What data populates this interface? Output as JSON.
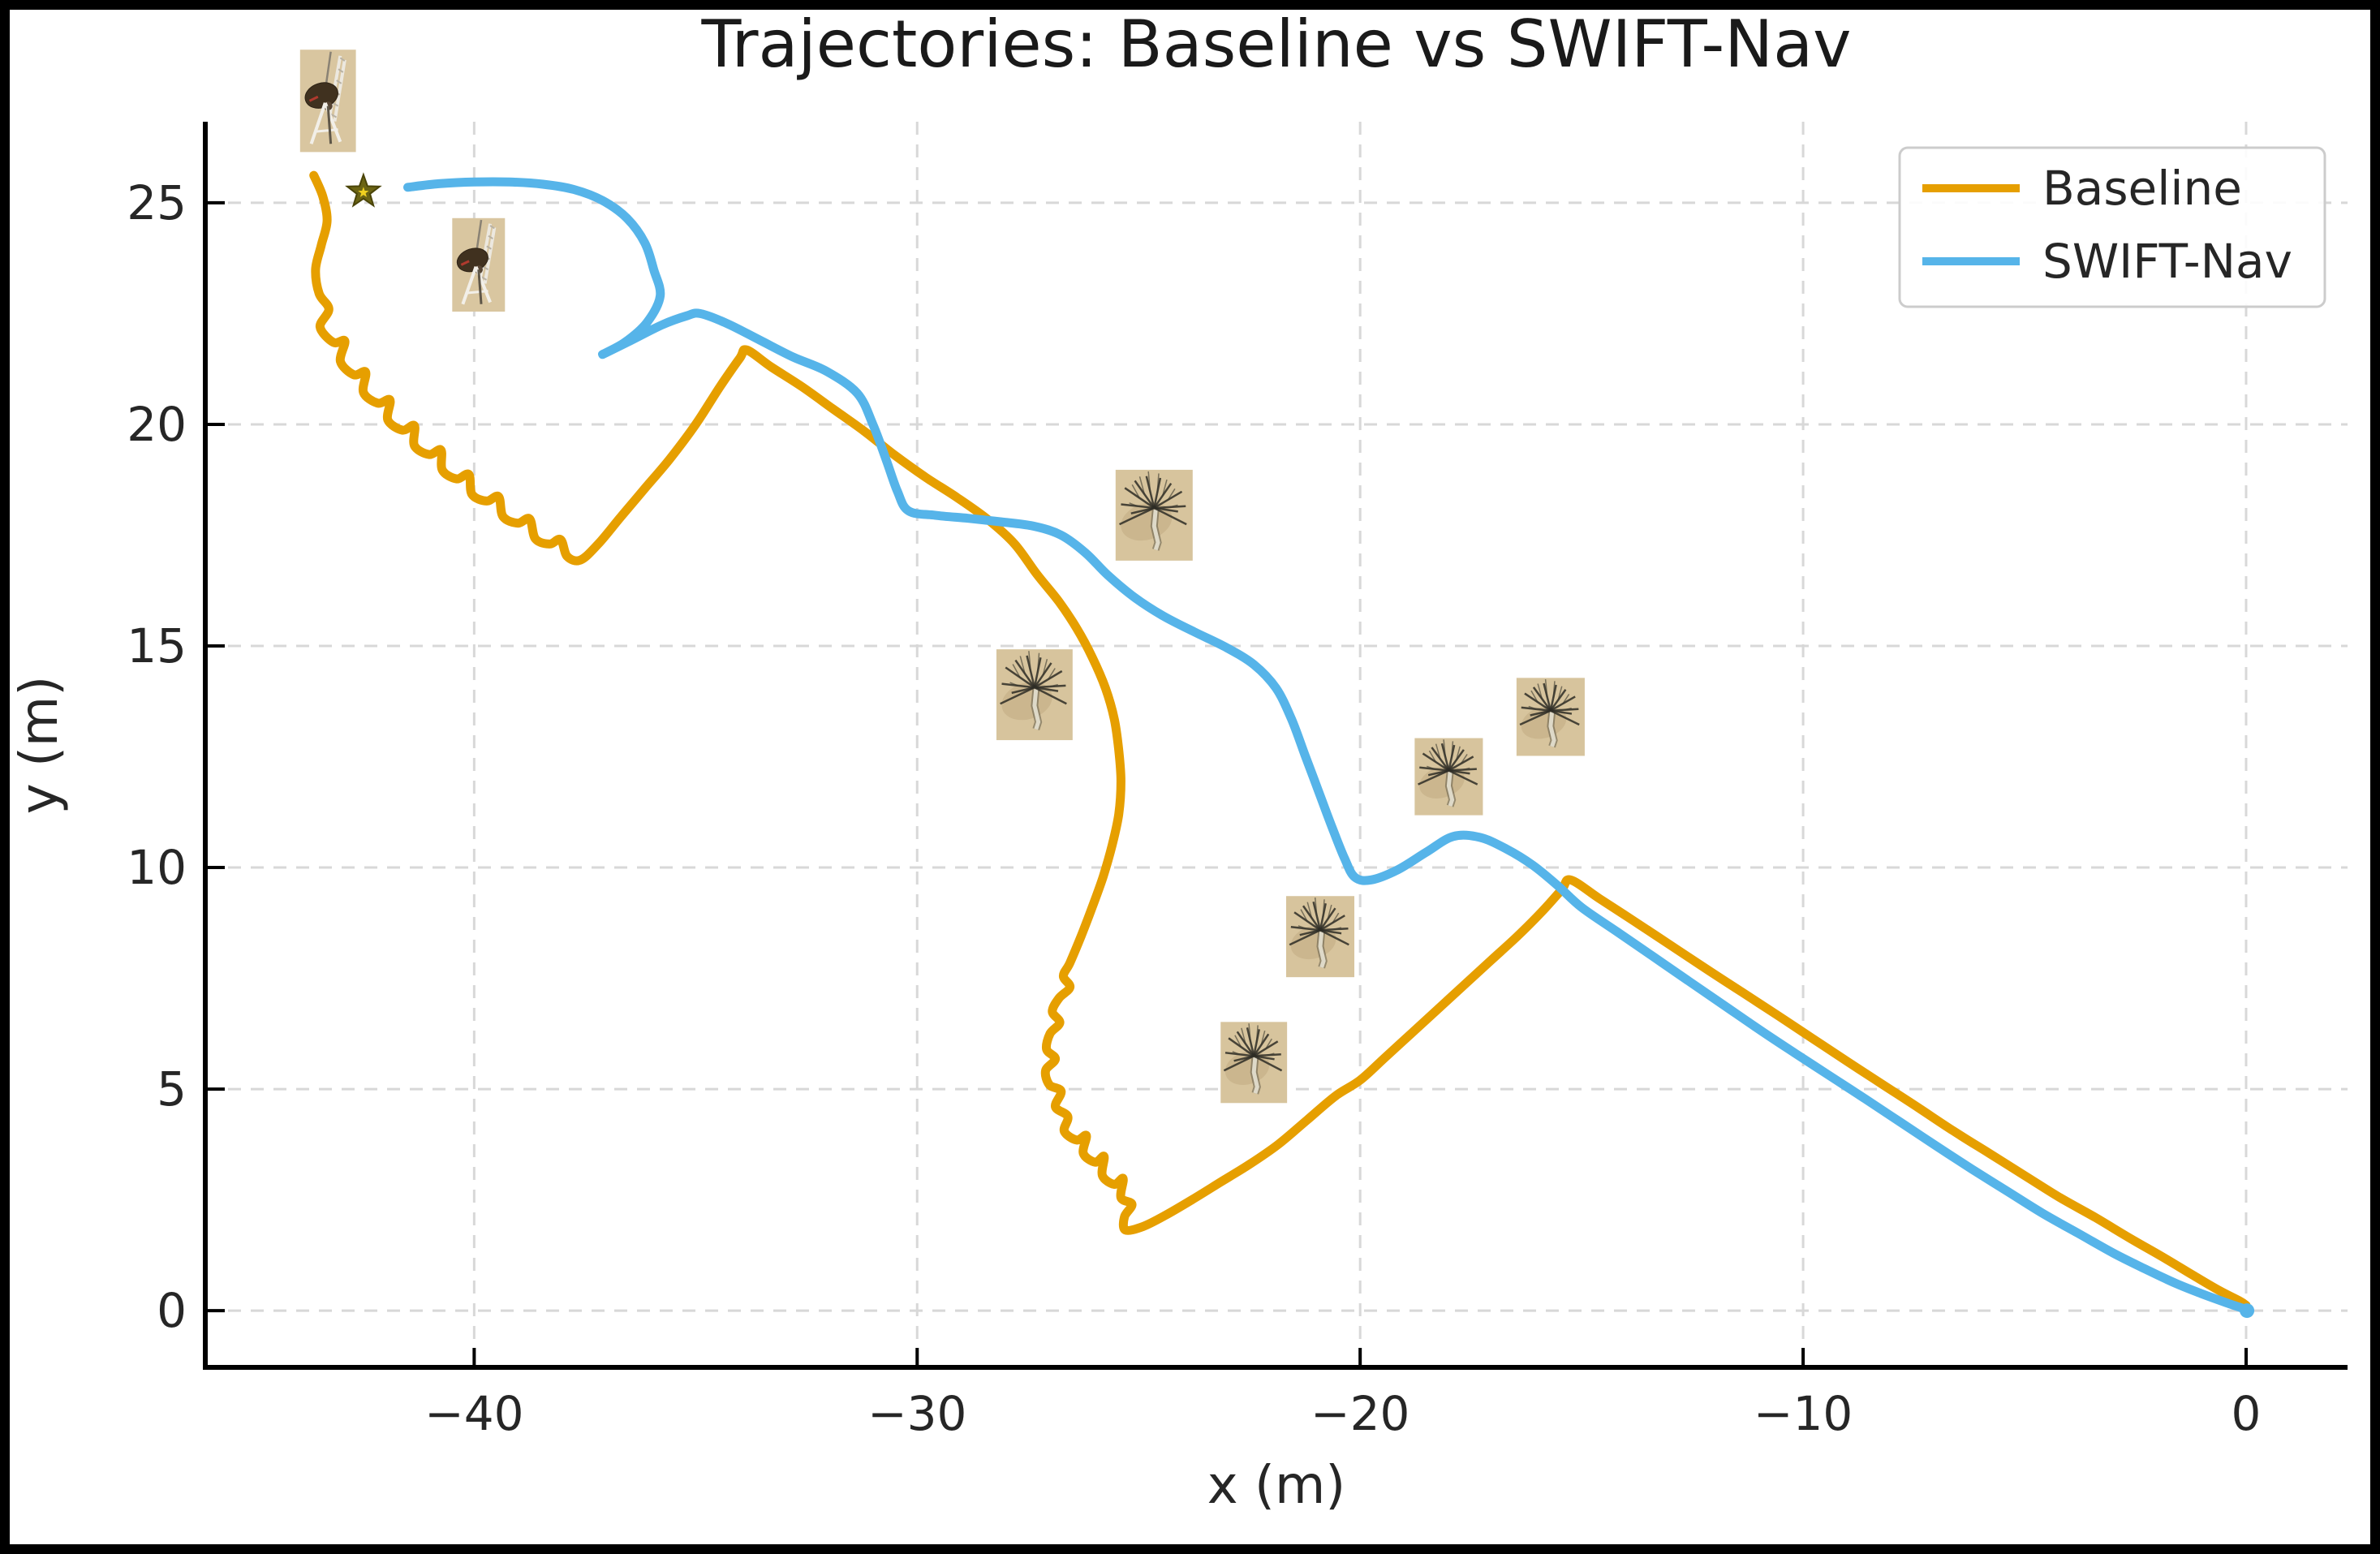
{
  "figure": {
    "title": "Trajectories: Baseline vs SWIFT-Nav",
    "xlabel": "x (m)",
    "ylabel": "y (m)",
    "background_color": "#ffffff",
    "frame_color": "#000000",
    "grid_color": "#d8d8d8",
    "text_color": "#262626"
  },
  "legend": {
    "position": "upper right",
    "entries": [
      {
        "label": "Baseline",
        "color": "#E69F00"
      },
      {
        "label": "SWIFT-Nav",
        "color": "#56B4E9"
      }
    ]
  },
  "chart_data": {
    "type": "line",
    "title": "Trajectories: Baseline vs SWIFT-Nav",
    "xlabel": "x (m)",
    "ylabel": "y (m)",
    "xlim": [
      -46.07,
      2.29
    ],
    "ylim": [
      -1.28,
      26.83
    ],
    "xticks": [
      -40,
      -30,
      -20,
      -10,
      0
    ],
    "yticks": [
      0,
      5,
      10,
      15,
      20,
      25
    ],
    "xtick_labels": [
      "−40",
      "−30",
      "−20",
      "−10",
      "0"
    ],
    "ytick_labels": [
      "0",
      "5",
      "10",
      "15",
      "20",
      "25"
    ],
    "grid": true,
    "legend_position": "upper right",
    "series": [
      {
        "name": "Baseline",
        "color": "#E69F00",
        "linewidth": 11,
        "end_dot": false,
        "points": [
          [
            -43.62,
            25.62
          ],
          [
            -43.42,
            25.15
          ],
          [
            -43.32,
            24.6
          ],
          [
            -43.45,
            24.05
          ],
          [
            -43.58,
            23.5
          ],
          [
            -43.5,
            22.95
          ],
          [
            -43.28,
            22.6
          ],
          [
            -43.48,
            22.2
          ],
          [
            -43.18,
            21.85
          ],
          [
            -42.92,
            21.88
          ],
          [
            -43.02,
            21.42
          ],
          [
            -42.72,
            21.12
          ],
          [
            -42.45,
            21.18
          ],
          [
            -42.5,
            20.72
          ],
          [
            -42.18,
            20.48
          ],
          [
            -41.9,
            20.55
          ],
          [
            -41.95,
            20.1
          ],
          [
            -41.62,
            19.87
          ],
          [
            -41.35,
            19.97
          ],
          [
            -41.35,
            19.52
          ],
          [
            -41.02,
            19.32
          ],
          [
            -40.75,
            19.42
          ],
          [
            -40.72,
            18.97
          ],
          [
            -40.4,
            18.77
          ],
          [
            -40.12,
            18.87
          ],
          [
            -40.05,
            18.42
          ],
          [
            -39.72,
            18.27
          ],
          [
            -39.45,
            18.37
          ],
          [
            -39.35,
            17.92
          ],
          [
            -39.02,
            17.77
          ],
          [
            -38.75,
            17.87
          ],
          [
            -38.62,
            17.42
          ],
          [
            -38.3,
            17.3
          ],
          [
            -38.05,
            17.4
          ],
          [
            -37.9,
            17.02
          ],
          [
            -37.6,
            16.94
          ],
          [
            -37.2,
            17.3
          ],
          [
            -36.7,
            17.9
          ],
          [
            -36.15,
            18.55
          ],
          [
            -35.6,
            19.2
          ],
          [
            -35.0,
            20.0
          ],
          [
            -34.45,
            20.85
          ],
          [
            -34.0,
            21.5
          ],
          [
            -33.85,
            21.68
          ],
          [
            -33.3,
            21.3
          ],
          [
            -32.6,
            20.85
          ],
          [
            -31.9,
            20.35
          ],
          [
            -31.2,
            19.85
          ],
          [
            -30.5,
            19.3
          ],
          [
            -29.8,
            18.8
          ],
          [
            -29.1,
            18.35
          ],
          [
            -28.4,
            17.85
          ],
          [
            -27.8,
            17.3
          ],
          [
            -27.3,
            16.62
          ],
          [
            -26.8,
            16.0
          ],
          [
            -26.4,
            15.4
          ],
          [
            -26.05,
            14.75
          ],
          [
            -25.75,
            14.05
          ],
          [
            -25.55,
            13.35
          ],
          [
            -25.45,
            12.65
          ],
          [
            -25.4,
            11.95
          ],
          [
            -25.45,
            11.2
          ],
          [
            -25.6,
            10.5
          ],
          [
            -25.8,
            9.8
          ],
          [
            -26.05,
            9.1
          ],
          [
            -26.3,
            8.45
          ],
          [
            -26.55,
            7.85
          ],
          [
            -26.7,
            7.55
          ],
          [
            -26.55,
            7.3
          ],
          [
            -26.8,
            7.05
          ],
          [
            -26.95,
            6.75
          ],
          [
            -26.78,
            6.5
          ],
          [
            -27.0,
            6.25
          ],
          [
            -27.08,
            5.9
          ],
          [
            -26.88,
            5.68
          ],
          [
            -27.1,
            5.42
          ],
          [
            -27.02,
            5.1
          ],
          [
            -26.75,
            4.95
          ],
          [
            -26.88,
            4.6
          ],
          [
            -26.6,
            4.38
          ],
          [
            -26.68,
            4.05
          ],
          [
            -26.4,
            3.85
          ],
          [
            -26.18,
            3.95
          ],
          [
            -26.25,
            3.55
          ],
          [
            -25.98,
            3.35
          ],
          [
            -25.78,
            3.48
          ],
          [
            -25.82,
            3.05
          ],
          [
            -25.55,
            2.85
          ],
          [
            -25.35,
            2.98
          ],
          [
            -25.4,
            2.55
          ],
          [
            -25.15,
            2.4
          ],
          [
            -25.32,
            2.12
          ],
          [
            -25.3,
            1.82
          ],
          [
            -24.9,
            1.9
          ],
          [
            -24.4,
            2.15
          ],
          [
            -23.8,
            2.5
          ],
          [
            -23.15,
            2.9
          ],
          [
            -22.5,
            3.3
          ],
          [
            -21.85,
            3.75
          ],
          [
            -21.2,
            4.3
          ],
          [
            -20.55,
            4.85
          ],
          [
            -20.0,
            5.2
          ],
          [
            -19.45,
            5.7
          ],
          [
            -18.85,
            6.25
          ],
          [
            -18.25,
            6.8
          ],
          [
            -17.65,
            7.35
          ],
          [
            -17.05,
            7.9
          ],
          [
            -16.45,
            8.45
          ],
          [
            -15.9,
            9.0
          ],
          [
            -15.45,
            9.5
          ],
          [
            -15.25,
            9.72
          ],
          [
            -14.6,
            9.3
          ],
          [
            -13.8,
            8.78
          ],
          [
            -13.0,
            8.25
          ],
          [
            -12.2,
            7.72
          ],
          [
            -11.4,
            7.2
          ],
          [
            -10.6,
            6.68
          ],
          [
            -9.8,
            6.15
          ],
          [
            -9.0,
            5.62
          ],
          [
            -8.2,
            5.1
          ],
          [
            -7.4,
            4.58
          ],
          [
            -6.6,
            4.05
          ],
          [
            -5.8,
            3.55
          ],
          [
            -5.0,
            3.05
          ],
          [
            -4.2,
            2.55
          ],
          [
            -3.4,
            2.1
          ],
          [
            -2.6,
            1.62
          ],
          [
            -1.9,
            1.22
          ],
          [
            -1.2,
            0.8
          ],
          [
            -0.6,
            0.45
          ],
          [
            -0.15,
            0.22
          ],
          [
            0.0,
            0.12
          ]
        ]
      },
      {
        "name": "SWIFT-Nav",
        "color": "#56B4E9",
        "linewidth": 11,
        "end_dot": true,
        "points": [
          [
            -41.5,
            25.35
          ],
          [
            -40.8,
            25.43
          ],
          [
            -40.0,
            25.47
          ],
          [
            -39.2,
            25.47
          ],
          [
            -38.45,
            25.42
          ],
          [
            -37.75,
            25.3
          ],
          [
            -37.1,
            25.05
          ],
          [
            -36.55,
            24.65
          ],
          [
            -36.15,
            24.1
          ],
          [
            -35.95,
            23.5
          ],
          [
            -35.8,
            22.9
          ],
          [
            -36.1,
            22.3
          ],
          [
            -36.6,
            21.85
          ],
          [
            -37.1,
            21.58
          ],
          [
            -36.45,
            21.9
          ],
          [
            -35.75,
            22.25
          ],
          [
            -35.2,
            22.45
          ],
          [
            -34.9,
            22.5
          ],
          [
            -34.3,
            22.28
          ],
          [
            -33.55,
            21.9
          ],
          [
            -32.8,
            21.52
          ],
          [
            -32.05,
            21.2
          ],
          [
            -31.35,
            20.7
          ],
          [
            -31.0,
            20.0
          ],
          [
            -30.7,
            19.2
          ],
          [
            -30.45,
            18.5
          ],
          [
            -30.2,
            18.05
          ],
          [
            -29.6,
            17.95
          ],
          [
            -28.85,
            17.88
          ],
          [
            -28.1,
            17.8
          ],
          [
            -27.35,
            17.7
          ],
          [
            -26.75,
            17.5
          ],
          [
            -26.2,
            17.1
          ],
          [
            -25.7,
            16.6
          ],
          [
            -25.1,
            16.1
          ],
          [
            -24.45,
            15.68
          ],
          [
            -23.75,
            15.32
          ],
          [
            -23.05,
            14.98
          ],
          [
            -22.4,
            14.58
          ],
          [
            -21.9,
            14.05
          ],
          [
            -21.55,
            13.35
          ],
          [
            -21.25,
            12.55
          ],
          [
            -20.95,
            11.75
          ],
          [
            -20.65,
            10.95
          ],
          [
            -20.35,
            10.2
          ],
          [
            -20.12,
            9.78
          ],
          [
            -19.75,
            9.72
          ],
          [
            -19.15,
            9.95
          ],
          [
            -18.5,
            10.35
          ],
          [
            -17.9,
            10.7
          ],
          [
            -17.3,
            10.68
          ],
          [
            -16.7,
            10.42
          ],
          [
            -16.1,
            10.05
          ],
          [
            -15.55,
            9.6
          ],
          [
            -15.0,
            9.1
          ],
          [
            -14.2,
            8.55
          ],
          [
            -13.4,
            8.0
          ],
          [
            -12.6,
            7.45
          ],
          [
            -11.8,
            6.9
          ],
          [
            -11.0,
            6.35
          ],
          [
            -10.2,
            5.82
          ],
          [
            -9.4,
            5.3
          ],
          [
            -8.6,
            4.78
          ],
          [
            -7.8,
            4.25
          ],
          [
            -7.0,
            3.72
          ],
          [
            -6.2,
            3.2
          ],
          [
            -5.4,
            2.7
          ],
          [
            -4.6,
            2.2
          ],
          [
            -3.8,
            1.75
          ],
          [
            -3.0,
            1.3
          ],
          [
            -2.3,
            0.95
          ],
          [
            -1.6,
            0.62
          ],
          [
            -1.0,
            0.38
          ],
          [
            -0.45,
            0.18
          ],
          [
            -0.1,
            0.06
          ],
          [
            0.02,
            0.0
          ]
        ]
      }
    ],
    "start_marker": {
      "shape": "star",
      "x": -42.5,
      "y": 25.25,
      "fill": "#6b6414",
      "edge": "#4a4408",
      "inner_star_fill": "#f0d020"
    },
    "end_marker": {
      "x": 0.0,
      "y": 0.0,
      "color": "#56B4E9"
    },
    "obstacles": [
      {
        "type": "windmill",
        "x": -43.3,
        "y": 27.3,
        "w": 1.26,
        "h": 2.31
      },
      {
        "type": "windmill",
        "x": -39.9,
        "y": 23.6,
        "w": 1.19,
        "h": 2.11
      },
      {
        "type": "tree",
        "x": -24.65,
        "y": 17.95,
        "w": 1.74,
        "h": 2.05
      },
      {
        "type": "tree",
        "x": -27.35,
        "y": 13.9,
        "w": 1.72,
        "h": 2.05
      },
      {
        "type": "tree",
        "x": -15.7,
        "y": 13.4,
        "w": 1.54,
        "h": 1.76
      },
      {
        "type": "tree",
        "x": -18.0,
        "y": 12.05,
        "w": 1.54,
        "h": 1.74
      },
      {
        "type": "tree",
        "x": -20.9,
        "y": 8.44,
        "w": 1.54,
        "h": 1.83
      },
      {
        "type": "tree",
        "x": -22.4,
        "y": 5.6,
        "w": 1.5,
        "h": 1.83
      }
    ]
  }
}
